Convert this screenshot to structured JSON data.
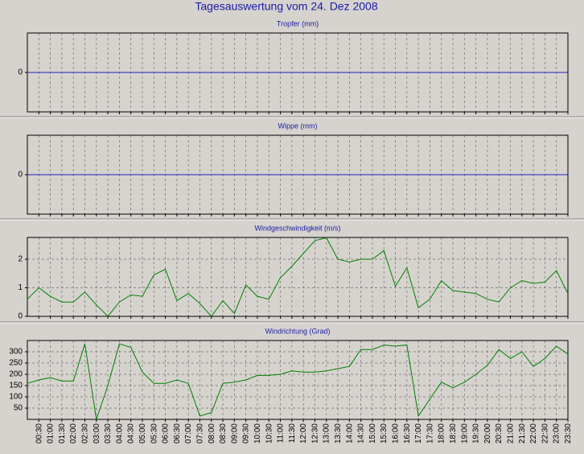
{
  "title": "Tagesauswertung vom 24. Dez 2008",
  "chart_data": [
    {
      "type": "line",
      "title": "Tropfer (mm)",
      "ylim": [
        -1,
        1
      ],
      "yticks": [
        0
      ],
      "zero_line_color": "#2020c0",
      "grid": true
    },
    {
      "type": "line",
      "title": "Wippe (mm)",
      "ylim": [
        -1,
        1
      ],
      "yticks": [
        0
      ],
      "zero_line_color": "#2020c0",
      "grid": true
    },
    {
      "type": "line",
      "title": "Windgeschwindigkeit (m/s)",
      "ylim": [
        0,
        2.76
      ],
      "yticks": [
        0,
        1,
        2
      ],
      "grid": true,
      "series": [
        {
          "name": "Windgeschwindigkeit",
          "color": "#008000",
          "values": [
            0.6,
            1.0,
            0.7,
            0.5,
            0.5,
            0.85,
            0.4,
            0.0,
            0.5,
            0.75,
            0.7,
            1.45,
            1.65,
            0.55,
            0.8,
            0.45,
            0.0,
            0.55,
            0.1,
            1.1,
            0.7,
            0.6,
            1.35,
            1.75,
            2.2,
            2.65,
            2.75,
            2.0,
            1.9,
            2.0,
            2.0,
            2.3,
            1.05,
            1.7,
            0.3,
            0.6,
            1.25,
            0.9,
            0.85,
            0.8,
            0.6,
            0.5,
            1.0,
            1.25,
            1.15,
            1.2,
            1.6,
            0.8
          ]
        }
      ]
    },
    {
      "type": "line",
      "title": "Windrichtung (Grad)",
      "ylim": [
        0,
        350
      ],
      "yticks": [
        50,
        100,
        150,
        200,
        250,
        300
      ],
      "grid": true,
      "categories": [
        null,
        "00:30",
        "01:00",
        "01:30",
        "02:00",
        "02:30",
        "03:00",
        "03:30",
        "04:00",
        "04:30",
        "05:00",
        "05:30",
        "06:00",
        "06:30",
        "07:00",
        "07:30",
        "08:00",
        "08:30",
        "09:00",
        "09:30",
        "10:00",
        "10:30",
        "11:00",
        "11:30",
        "12:00",
        "12:30",
        "13:00",
        "13:30",
        "14:00",
        "14:30",
        "15:00",
        "15:30",
        "16:00",
        "16:30",
        "17:00",
        "17:30",
        "18:00",
        "18:30",
        "19:00",
        "19:30",
        "20:00",
        "20:30",
        "21:00",
        "21:30",
        "22:00",
        "22:30",
        "23:00",
        "23:30"
      ],
      "series": [
        {
          "name": "Windrichtung",
          "color": "#008000",
          "values": [
            160,
            175,
            185,
            170,
            170,
            335,
            0,
            150,
            335,
            320,
            210,
            160,
            160,
            175,
            160,
            15,
            30,
            160,
            165,
            175,
            195,
            195,
            200,
            215,
            210,
            210,
            215,
            225,
            235,
            310,
            310,
            330,
            325,
            330,
            15,
            90,
            165,
            140,
            165,
            200,
            240,
            310,
            270,
            300,
            235,
            270,
            325,
            290
          ]
        }
      ]
    }
  ]
}
